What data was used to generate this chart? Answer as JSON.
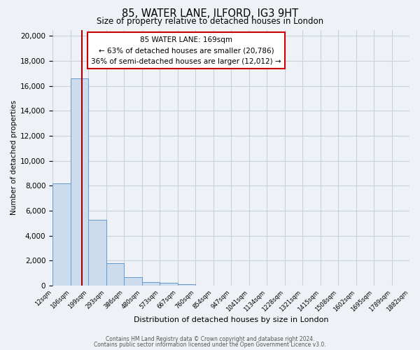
{
  "title": "85, WATER LANE, ILFORD, IG3 9HT",
  "subtitle": "Size of property relative to detached houses in London",
  "xlabel": "Distribution of detached houses by size in London",
  "ylabel": "Number of detached properties",
  "bar_values": [
    8200,
    16600,
    5300,
    1800,
    700,
    300,
    200,
    100,
    0,
    0,
    0,
    0,
    0,
    0,
    0,
    0,
    0,
    0,
    0,
    0
  ],
  "bin_labels": [
    "12sqm",
    "106sqm",
    "199sqm",
    "293sqm",
    "386sqm",
    "480sqm",
    "573sqm",
    "667sqm",
    "760sqm",
    "854sqm",
    "947sqm",
    "1041sqm",
    "1134sqm",
    "1228sqm",
    "1321sqm",
    "1415sqm",
    "1508sqm",
    "1602sqm",
    "1695sqm",
    "1789sqm",
    "1882sqm"
  ],
  "bar_color": "#cddcec",
  "bar_edge_color": "#6699cc",
  "vline_x": 1.63,
  "vline_color": "#aa0000",
  "annotation_title": "85 WATER LANE: 169sqm",
  "annotation_line1": "← 63% of detached houses are smaller (20,786)",
  "annotation_line2": "36% of semi-detached houses are larger (12,012) →",
  "annotation_box_color": "#ffffff",
  "annotation_box_edge": "#cc0000",
  "ylim": [
    0,
    20500
  ],
  "yticks": [
    0,
    2000,
    4000,
    6000,
    8000,
    10000,
    12000,
    14000,
    16000,
    18000,
    20000
  ],
  "grid_color": "#c8d0d8",
  "background_color": "#eef2f7",
  "footer_line1": "Contains HM Land Registry data © Crown copyright and database right 2024.",
  "footer_line2": "Contains public sector information licensed under the Open Government Licence v3.0."
}
